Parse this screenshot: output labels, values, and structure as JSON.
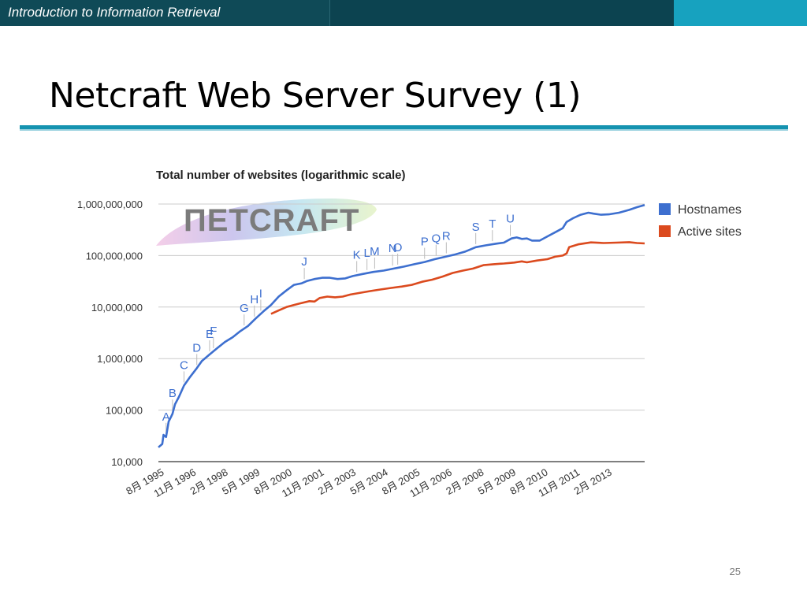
{
  "header": {
    "course_title": "Introduction to Information Retrieval"
  },
  "slide": {
    "title": "Netcraft Web Server Survey (1)",
    "page_number": "25"
  },
  "logo": {
    "text": "ПETCRAFT"
  },
  "chart_data": {
    "type": "line",
    "title": "Total number of websites (logarithmic scale)",
    "xlabel": "",
    "ylabel": "",
    "y_scale": "log",
    "ylim": [
      10000,
      1000000000
    ],
    "y_ticks": [
      10000,
      100000,
      1000000,
      10000000,
      100000000,
      1000000000
    ],
    "y_tick_labels": [
      "10,000",
      "100,000",
      "1,000,000",
      "10,000,000",
      "100,000,000",
      "1,000,000,000"
    ],
    "xlim": [
      1995.6,
      2014.6
    ],
    "x_ticks": [
      1995.6,
      1996.85,
      1998.1,
      1999.35,
      2000.6,
      2001.85,
      2003.1,
      2004.35,
      2005.6,
      2006.85,
      2008.1,
      2009.35,
      2010.6,
      2011.85,
      2013.1
    ],
    "x_tick_labels": [
      "8月 1995",
      "11月 1996",
      "2月 1998",
      "5月 1999",
      "8月 2000",
      "11月 2001",
      "2月 2003",
      "5月 2004",
      "8月 2005",
      "11月 2006",
      "2月 2008",
      "5月 2009",
      "8月 2010",
      "11月 2011",
      "2月 2013"
    ],
    "grid": true,
    "legend": "right",
    "series": [
      {
        "name": "Hostnames",
        "color": "#3d6fcf",
        "points": [
          [
            1995.6,
            19000
          ],
          [
            1995.75,
            22000
          ],
          [
            1995.8,
            33000
          ],
          [
            1995.9,
            30000
          ],
          [
            1996.0,
            60000
          ],
          [
            1996.1,
            75000
          ],
          [
            1996.15,
            85000
          ],
          [
            1996.25,
            130000
          ],
          [
            1996.4,
            180000
          ],
          [
            1996.6,
            300000
          ],
          [
            1996.85,
            450000
          ],
          [
            1997.1,
            650000
          ],
          [
            1997.3,
            900000
          ],
          [
            1997.6,
            1200000
          ],
          [
            1997.9,
            1600000
          ],
          [
            1998.2,
            2100000
          ],
          [
            1998.5,
            2600000
          ],
          [
            1998.8,
            3400000
          ],
          [
            1999.1,
            4300000
          ],
          [
            1999.4,
            6000000
          ],
          [
            1999.7,
            8200000
          ],
          [
            2000.0,
            11000000
          ],
          [
            2000.3,
            16000000
          ],
          [
            2000.6,
            21000000
          ],
          [
            2000.9,
            27000000
          ],
          [
            2001.2,
            29000000
          ],
          [
            2001.4,
            32000000
          ],
          [
            2001.7,
            35000000
          ],
          [
            2002.0,
            37000000
          ],
          [
            2002.3,
            37000000
          ],
          [
            2002.6,
            35000000
          ],
          [
            2002.9,
            36000000
          ],
          [
            2003.2,
            40000000
          ],
          [
            2003.6,
            44000000
          ],
          [
            2004.0,
            48000000
          ],
          [
            2004.4,
            51000000
          ],
          [
            2004.8,
            56000000
          ],
          [
            2005.2,
            61000000
          ],
          [
            2005.6,
            68000000
          ],
          [
            2006.0,
            75000000
          ],
          [
            2006.4,
            85000000
          ],
          [
            2006.85,
            96000000
          ],
          [
            2007.2,
            105000000
          ],
          [
            2007.6,
            120000000
          ],
          [
            2008.0,
            145000000
          ],
          [
            2008.4,
            158000000
          ],
          [
            2008.8,
            170000000
          ],
          [
            2009.1,
            178000000
          ],
          [
            2009.4,
            215000000
          ],
          [
            2009.6,
            225000000
          ],
          [
            2009.8,
            210000000
          ],
          [
            2010.0,
            215000000
          ],
          [
            2010.2,
            195000000
          ],
          [
            2010.5,
            195000000
          ],
          [
            2010.8,
            235000000
          ],
          [
            2011.2,
            300000000
          ],
          [
            2011.4,
            340000000
          ],
          [
            2011.55,
            450000000
          ],
          [
            2011.8,
            530000000
          ],
          [
            2012.1,
            620000000
          ],
          [
            2012.4,
            680000000
          ],
          [
            2012.6,
            650000000
          ],
          [
            2012.9,
            620000000
          ],
          [
            2013.2,
            630000000
          ],
          [
            2013.6,
            680000000
          ],
          [
            2014.0,
            770000000
          ],
          [
            2014.3,
            870000000
          ],
          [
            2014.6,
            960000000
          ]
        ]
      },
      {
        "name": "Active sites",
        "color": "#db4a1e",
        "points": [
          [
            2000.0,
            7400000
          ],
          [
            2000.3,
            8600000
          ],
          [
            2000.6,
            10000000
          ],
          [
            2000.9,
            11000000
          ],
          [
            2001.2,
            12000000
          ],
          [
            2001.5,
            13000000
          ],
          [
            2001.7,
            12800000
          ],
          [
            2001.9,
            15000000
          ],
          [
            2002.2,
            16000000
          ],
          [
            2002.5,
            15500000
          ],
          [
            2002.8,
            16000000
          ],
          [
            2003.1,
            17500000
          ],
          [
            2003.5,
            19000000
          ],
          [
            2003.9,
            20500000
          ],
          [
            2004.3,
            22000000
          ],
          [
            2004.7,
            23500000
          ],
          [
            2005.1,
            25000000
          ],
          [
            2005.5,
            27000000
          ],
          [
            2005.9,
            31000000
          ],
          [
            2006.3,
            34000000
          ],
          [
            2006.7,
            39000000
          ],
          [
            2007.1,
            46000000
          ],
          [
            2007.5,
            51000000
          ],
          [
            2007.9,
            56000000
          ],
          [
            2008.3,
            65000000
          ],
          [
            2008.7,
            68000000
          ],
          [
            2009.1,
            70000000
          ],
          [
            2009.5,
            73000000
          ],
          [
            2009.8,
            77000000
          ],
          [
            2010.0,
            74000000
          ],
          [
            2010.4,
            80000000
          ],
          [
            2010.8,
            85000000
          ],
          [
            2011.1,
            95000000
          ],
          [
            2011.4,
            100000000
          ],
          [
            2011.55,
            110000000
          ],
          [
            2011.65,
            145000000
          ],
          [
            2012.0,
            165000000
          ],
          [
            2012.5,
            180000000
          ],
          [
            2013.0,
            175000000
          ],
          [
            2013.5,
            178000000
          ],
          [
            2014.0,
            182000000
          ],
          [
            2014.3,
            175000000
          ],
          [
            2014.6,
            172000000
          ]
        ]
      }
    ],
    "annotations": [
      {
        "label": "A",
        "x": 1995.9
      },
      {
        "label": "B",
        "x": 1996.15
      },
      {
        "label": "C",
        "x": 1996.6
      },
      {
        "label": "D",
        "x": 1997.1
      },
      {
        "label": "E",
        "x": 1997.6
      },
      {
        "label": "F",
        "x": 1997.75
      },
      {
        "label": "G",
        "x": 1998.95
      },
      {
        "label": "H",
        "x": 1999.35
      },
      {
        "label": "I",
        "x": 1999.6
      },
      {
        "label": "J",
        "x": 2001.3
      },
      {
        "label": "K",
        "x": 2003.35
      },
      {
        "label": "L",
        "x": 2003.75
      },
      {
        "label": "M",
        "x": 2004.05
      },
      {
        "label": "N",
        "x": 2004.75
      },
      {
        "label": "O",
        "x": 2004.95
      },
      {
        "label": "P",
        "x": 2006.0
      },
      {
        "label": "Q",
        "x": 2006.45
      },
      {
        "label": "R",
        "x": 2006.85
      },
      {
        "label": "S",
        "x": 2008.0
      },
      {
        "label": "T",
        "x": 2008.65
      },
      {
        "label": "U",
        "x": 2009.35
      }
    ]
  }
}
